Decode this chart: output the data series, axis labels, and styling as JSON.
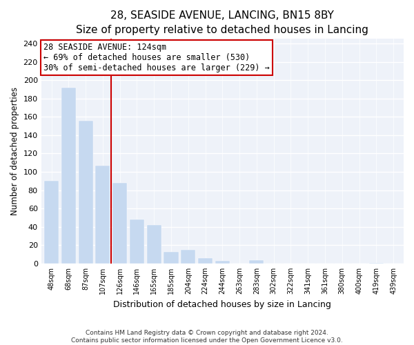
{
  "title": "28, SEASIDE AVENUE, LANCING, BN15 8BY",
  "subtitle": "Size of property relative to detached houses in Lancing",
  "xlabel": "Distribution of detached houses by size in Lancing",
  "ylabel": "Number of detached properties",
  "bar_labels": [
    "48sqm",
    "68sqm",
    "87sqm",
    "107sqm",
    "126sqm",
    "146sqm",
    "165sqm",
    "185sqm",
    "204sqm",
    "224sqm",
    "244sqm",
    "263sqm",
    "283sqm",
    "302sqm",
    "322sqm",
    "341sqm",
    "361sqm",
    "380sqm",
    "400sqm",
    "419sqm",
    "439sqm"
  ],
  "bar_values": [
    90,
    192,
    156,
    107,
    88,
    48,
    42,
    13,
    15,
    6,
    3,
    0,
    4,
    0,
    0,
    0,
    0,
    0,
    0,
    1,
    0
  ],
  "bar_color": "#c6d9f0",
  "vline_x_index": 4,
  "vline_color": "#cc0000",
  "annotation_title": "28 SEASIDE AVENUE: 124sqm",
  "annotation_line1": "← 69% of detached houses are smaller (530)",
  "annotation_line2": "30% of semi-detached houses are larger (229) →",
  "annotation_box_color": "#cc0000",
  "ylim": [
    0,
    245
  ],
  "yticks": [
    0,
    20,
    40,
    60,
    80,
    100,
    120,
    140,
    160,
    180,
    200,
    220,
    240
  ],
  "footer_line1": "Contains HM Land Registry data © Crown copyright and database right 2024.",
  "footer_line2": "Contains public sector information licensed under the Open Government Licence v3.0.",
  "plot_bg_color": "#eef2f9",
  "title_fontsize": 11,
  "subtitle_fontsize": 9.5,
  "annotation_fontsize": 8.5
}
